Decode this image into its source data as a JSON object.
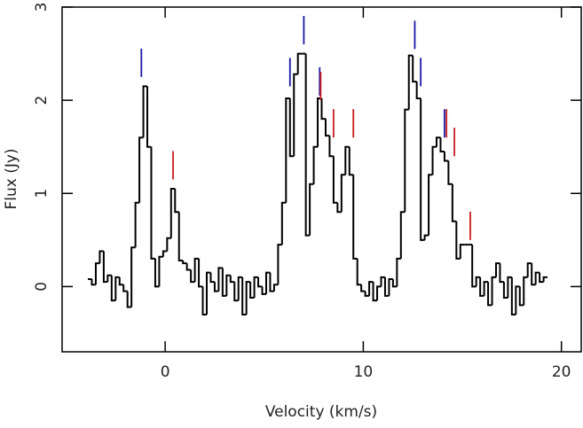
{
  "chart_data": {
    "type": "step",
    "xlabel": "Velocity (km/s)",
    "ylabel": "Flux (Jy)",
    "xlim": [
      -5.2,
      21
    ],
    "ylim": [
      -0.7,
      3
    ],
    "xticks": [
      0,
      10,
      20
    ],
    "yticks": [
      0,
      1,
      2,
      3
    ],
    "color": "#000000",
    "x": [
      -3.8,
      -3.6,
      -3.4,
      -3.2,
      -3.0,
      -2.8,
      -2.6,
      -2.4,
      -2.2,
      -2.0,
      -1.8,
      -1.6,
      -1.4,
      -1.2,
      -1.0,
      -0.8,
      -0.6,
      -0.4,
      -0.2,
      0.0,
      0.2,
      0.4,
      0.6,
      0.8,
      1.0,
      1.2,
      1.4,
      1.6,
      1.8,
      2.0,
      2.2,
      2.4,
      2.6,
      2.8,
      3.0,
      3.2,
      3.4,
      3.6,
      3.8,
      4.0,
      4.2,
      4.4,
      4.6,
      4.8,
      5.0,
      5.2,
      5.4,
      5.6,
      5.8,
      6.0,
      6.2,
      6.4,
      6.6,
      6.8,
      7.0,
      7.2,
      7.4,
      7.6,
      7.8,
      8.0,
      8.2,
      8.4,
      8.6,
      8.8,
      9.0,
      9.2,
      9.4,
      9.6,
      9.8,
      10.0,
      10.2,
      10.4,
      10.6,
      10.8,
      11.0,
      11.2,
      11.4,
      11.6,
      11.8,
      12.0,
      12.2,
      12.4,
      12.6,
      12.8,
      13.0,
      13.2,
      13.4,
      13.6,
      13.8,
      14.0,
      14.2,
      14.4,
      14.6,
      14.8,
      15.0,
      15.2,
      15.4,
      15.6,
      15.8,
      16.0,
      16.2,
      16.4,
      16.6,
      16.8,
      17.0,
      17.2,
      17.4,
      17.6,
      17.8,
      18.0,
      18.2,
      18.4,
      18.6,
      18.8,
      19.0,
      19.2
    ],
    "values": [
      0.08,
      0.02,
      0.25,
      0.38,
      0.05,
      0.12,
      -0.15,
      0.1,
      0.02,
      -0.05,
      -0.22,
      0.42,
      0.9,
      1.6,
      2.15,
      1.5,
      0.3,
      0.0,
      0.32,
      0.38,
      0.52,
      1.05,
      0.8,
      0.28,
      0.25,
      0.18,
      0.05,
      0.3,
      0.0,
      -0.3,
      0.15,
      0.05,
      -0.05,
      0.2,
      -0.1,
      0.12,
      0.05,
      -0.15,
      0.1,
      -0.3,
      0.05,
      -0.12,
      0.1,
      0.0,
      -0.08,
      0.15,
      -0.05,
      0.02,
      0.45,
      0.9,
      2.02,
      1.4,
      2.28,
      2.5,
      2.5,
      0.55,
      1.1,
      1.5,
      2.02,
      1.8,
      1.62,
      1.4,
      0.9,
      0.8,
      1.2,
      1.5,
      1.2,
      0.3,
      0.02,
      -0.05,
      -0.1,
      0.05,
      -0.15,
      0.0,
      0.1,
      -0.1,
      0.08,
      0.0,
      0.3,
      0.8,
      1.9,
      2.48,
      2.2,
      2.02,
      0.5,
      0.55,
      1.2,
      1.5,
      1.6,
      1.45,
      1.35,
      1.1,
      0.7,
      0.3,
      0.45,
      0.45,
      0.45,
      0.0,
      0.1,
      -0.1,
      0.05,
      -0.2,
      0.1,
      0.25,
      0.05,
      -0.12,
      0.1,
      -0.3,
      0.0,
      -0.2,
      0.1,
      0.25,
      0.02,
      0.15,
      0.05,
      0.1
    ],
    "line_markers": [
      {
        "color": "#1a1aa8",
        "x": [
          -1.2,
          6.3,
          7.0,
          7.8,
          12.6,
          12.9,
          14.1
        ],
        "y": [
          2.25,
          2.15,
          2.6,
          2.05,
          2.55,
          2.15,
          1.6
        ]
      },
      {
        "color": "#c81e1e",
        "x": [
          0.4,
          7.85,
          8.5,
          9.5,
          14.2,
          14.6,
          15.4
        ],
        "y": [
          1.15,
          2.0,
          1.6,
          1.6,
          1.6,
          1.4,
          0.5
        ]
      }
    ]
  }
}
